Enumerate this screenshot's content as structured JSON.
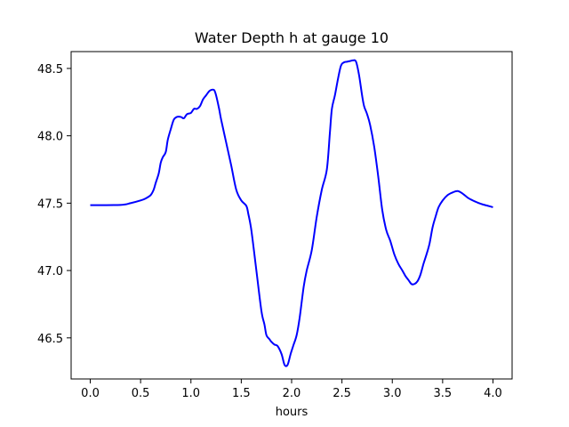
{
  "chart_data": {
    "type": "line",
    "title": "Water Depth h at gauge 10",
    "xlabel": "hours",
    "ylabel": "",
    "xlim": [
      -0.19,
      4.19
    ],
    "ylim": [
      46.195,
      48.625
    ],
    "xticks": [
      0.0,
      0.5,
      1.0,
      1.5,
      2.0,
      2.5,
      3.0,
      3.5,
      4.0
    ],
    "xtick_labels": [
      "0.0",
      "0.5",
      "1.0",
      "1.5",
      "2.0",
      "2.5",
      "3.0",
      "3.5",
      "4.0"
    ],
    "yticks": [
      46.5,
      47.0,
      47.5,
      48.0,
      48.5
    ],
    "ytick_labels": [
      "46.5",
      "47.0",
      "47.5",
      "48.0",
      "48.5"
    ],
    "grid": false,
    "legend": "none",
    "series": [
      {
        "color": "#0000ff",
        "x": [
          0.0,
          0.3,
          0.4,
          0.5,
          0.55,
          0.6,
          0.63,
          0.65,
          0.68,
          0.7,
          0.72,
          0.75,
          0.77,
          0.8,
          0.83,
          0.86,
          0.9,
          0.93,
          0.96,
          1.0,
          1.03,
          1.06,
          1.09,
          1.12,
          1.15,
          1.18,
          1.2,
          1.23,
          1.25,
          1.28,
          1.3,
          1.35,
          1.4,
          1.45,
          1.5,
          1.55,
          1.57,
          1.6,
          1.65,
          1.7,
          1.73,
          1.75,
          1.78,
          1.8,
          1.83,
          1.86,
          1.9,
          1.93,
          1.96,
          1.99,
          2.02,
          2.05,
          2.08,
          2.12,
          2.15,
          2.2,
          2.25,
          2.3,
          2.35,
          2.38,
          2.4,
          2.43,
          2.46,
          2.49,
          2.52,
          2.55,
          2.58,
          2.61,
          2.64,
          2.67,
          2.7,
          2.72,
          2.75,
          2.78,
          2.82,
          2.86,
          2.9,
          2.94,
          2.98,
          3.02,
          3.06,
          3.1,
          3.13,
          3.16,
          3.19,
          3.22,
          3.25,
          3.28,
          3.31,
          3.34,
          3.37,
          3.4,
          3.43,
          3.46,
          3.5,
          3.55,
          3.6,
          3.65,
          3.7,
          3.75,
          3.8,
          3.83,
          3.86,
          3.9,
          3.95,
          4.0
        ],
        "y": [
          47.485,
          47.487,
          47.5,
          47.52,
          47.535,
          47.56,
          47.6,
          47.65,
          47.72,
          47.8,
          47.84,
          47.88,
          47.97,
          48.05,
          48.12,
          48.14,
          48.14,
          48.13,
          48.16,
          48.17,
          48.2,
          48.2,
          48.22,
          48.27,
          48.3,
          48.33,
          48.34,
          48.34,
          48.3,
          48.2,
          48.12,
          47.95,
          47.78,
          47.6,
          47.52,
          47.48,
          47.42,
          47.3,
          47.0,
          46.7,
          46.6,
          46.52,
          46.49,
          46.47,
          46.45,
          46.44,
          46.38,
          46.3,
          46.3,
          46.38,
          46.45,
          46.52,
          46.65,
          46.88,
          47.0,
          47.15,
          47.4,
          47.6,
          47.75,
          48.02,
          48.2,
          48.3,
          48.42,
          48.52,
          48.545,
          48.55,
          48.555,
          48.56,
          48.55,
          48.45,
          48.3,
          48.22,
          48.16,
          48.08,
          47.92,
          47.7,
          47.45,
          47.3,
          47.22,
          47.12,
          47.05,
          47.0,
          46.96,
          46.93,
          46.9,
          46.9,
          46.92,
          46.97,
          47.05,
          47.12,
          47.2,
          47.32,
          47.4,
          47.47,
          47.52,
          47.56,
          47.58,
          47.59,
          47.57,
          47.54,
          47.52,
          47.51,
          47.5,
          47.49,
          47.48,
          47.47
        ]
      }
    ]
  }
}
